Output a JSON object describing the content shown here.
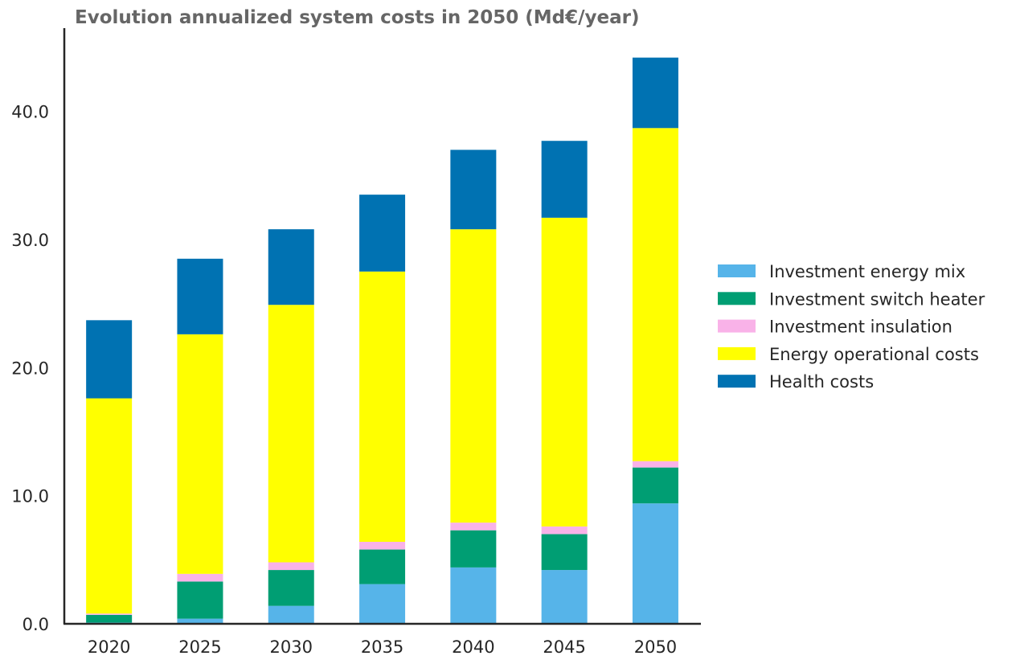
{
  "chart_data": {
    "type": "bar",
    "stacked": true,
    "title": "Evolution annualized system costs in 2050 (Md€/year)",
    "xlabel": "",
    "ylabel": "",
    "categories": [
      "2020",
      "2025",
      "2030",
      "2035",
      "2040",
      "2045",
      "2050"
    ],
    "ylim": [
      0,
      46.5
    ],
    "yticks": [
      0,
      10,
      20,
      30,
      40
    ],
    "ytick_labels": [
      "0.0",
      "10.0",
      "20.0",
      "30.0",
      "40.0"
    ],
    "grid": false,
    "legend_position": "right",
    "series": [
      {
        "name": "Investment energy mix",
        "color": "#56B4E9",
        "values": [
          0.1,
          0.4,
          1.4,
          3.1,
          4.4,
          4.2,
          9.4
        ]
      },
      {
        "name": "Investment switch heater",
        "color": "#009E73",
        "values": [
          0.6,
          2.9,
          2.8,
          2.7,
          2.9,
          2.8,
          2.8
        ]
      },
      {
        "name": "Investment insulation",
        "color": "#F9B2E8",
        "values": [
          0.1,
          0.6,
          0.6,
          0.6,
          0.6,
          0.6,
          0.5
        ]
      },
      {
        "name": "Energy operational costs",
        "color": "#FFFF00",
        "values": [
          16.8,
          18.7,
          20.1,
          21.1,
          22.9,
          24.1,
          26.0
        ]
      },
      {
        "name": "Health costs",
        "color": "#0072B2",
        "values": [
          6.1,
          5.9,
          5.9,
          6.0,
          6.2,
          6.0,
          5.5
        ]
      }
    ]
  }
}
